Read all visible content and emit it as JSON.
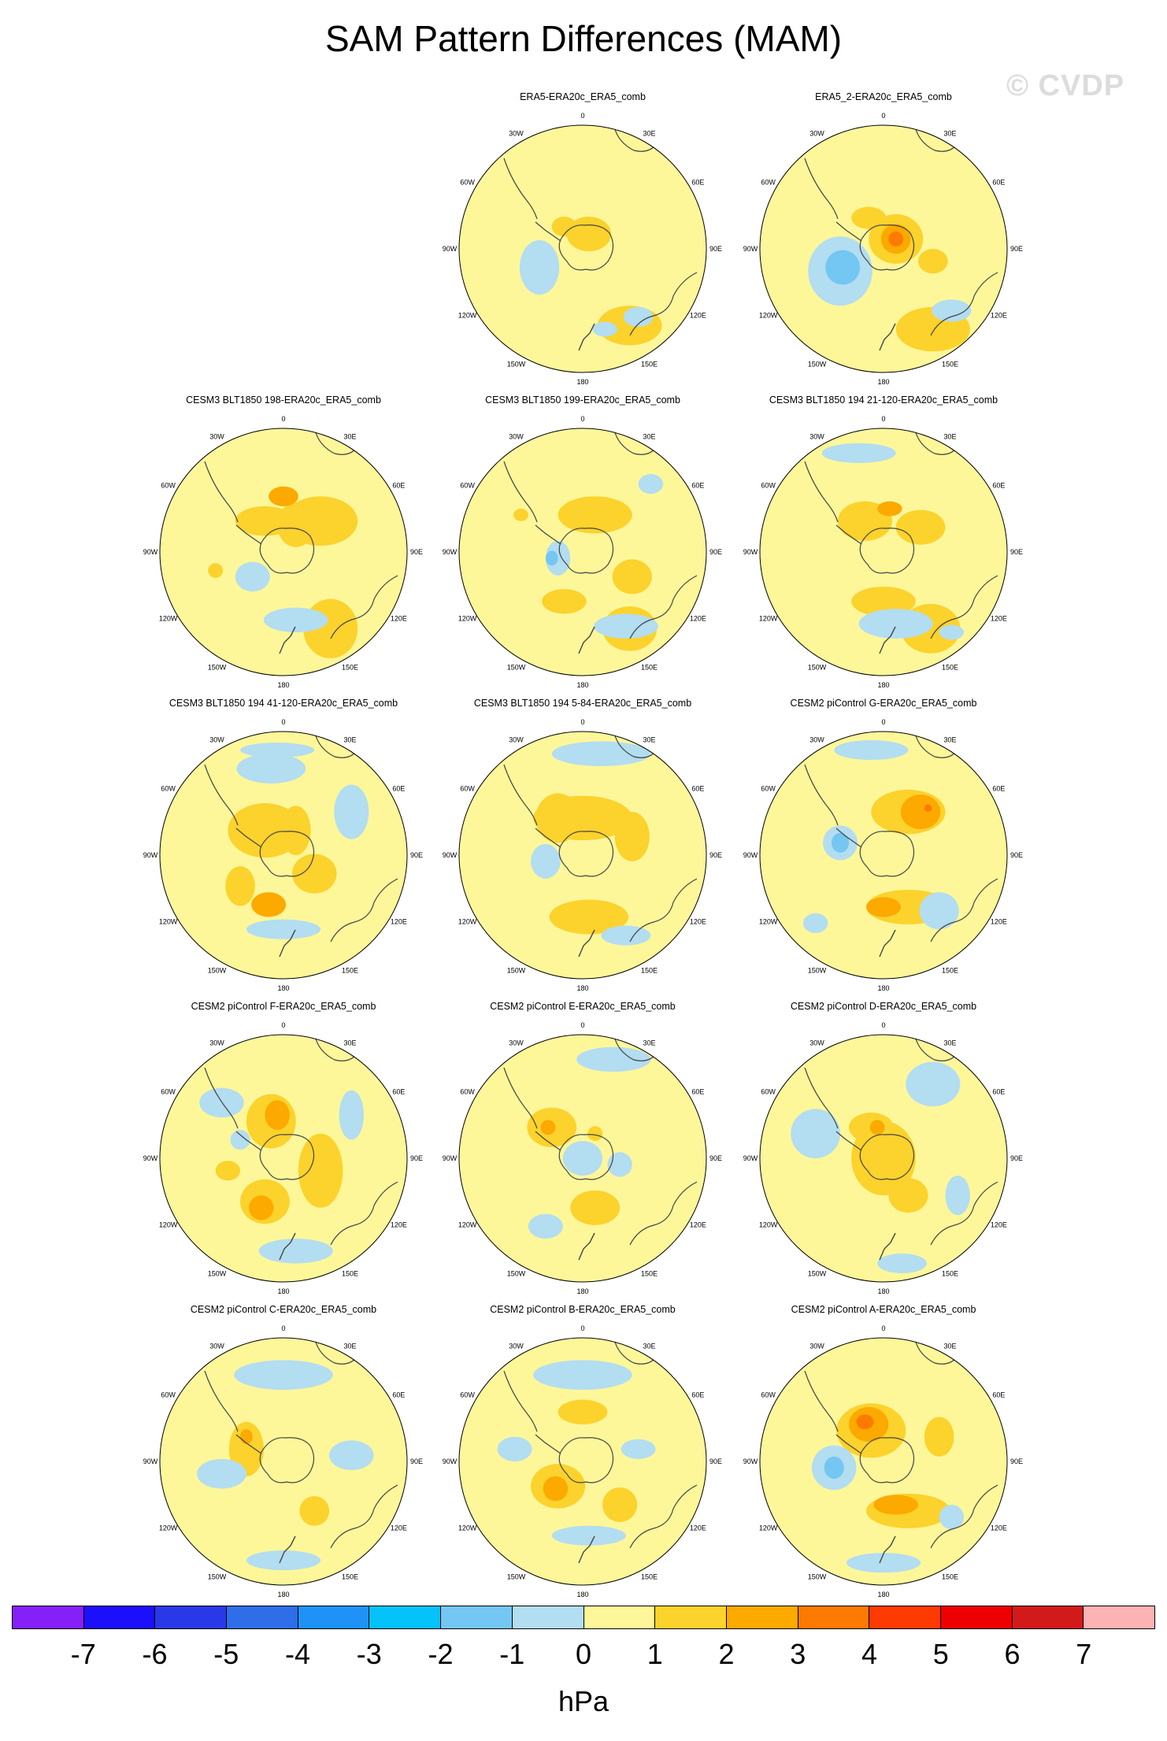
{
  "title": "SAM Pattern Differences (MAM)",
  "watermark": "© CVDP",
  "lon_labels": [
    "0",
    "30E",
    "60E",
    "90E",
    "120E",
    "150E",
    "180",
    "150W",
    "120W",
    "90W",
    "60W",
    "30W"
  ],
  "colors": {
    "background": "#ffffff",
    "zero_fill": "#fdf79a",
    "neg1": "#b3ddf0",
    "neg2": "#74c7f2",
    "pos1": "#fcd22c",
    "pos2": "#fca900",
    "pos3": "#fc7a00",
    "pos4": "#fd3a00"
  },
  "panels": [
    {
      "title": "ERA5-ERA20c_ERA5_comb",
      "row": 0,
      "col": 1,
      "blobs": [
        [
          0.38,
          0.62,
          0.26,
          0.16,
          1
        ],
        [
          -0.35,
          0.15,
          0.16,
          0.22,
          -1
        ],
        [
          0.05,
          -0.12,
          0.18,
          0.14,
          1
        ],
        [
          -0.15,
          -0.18,
          0.1,
          0.08,
          1
        ],
        [
          0.45,
          0.55,
          0.12,
          0.08,
          -1
        ],
        [
          0.18,
          0.65,
          0.1,
          0.06,
          -1
        ]
      ]
    },
    {
      "title": "ERA5_2-ERA20c_ERA5_comb",
      "row": 0,
      "col": 2,
      "blobs": [
        [
          0.4,
          0.65,
          0.3,
          0.18,
          1
        ],
        [
          -0.35,
          0.18,
          0.26,
          0.28,
          -1
        ],
        [
          -0.33,
          0.15,
          0.14,
          0.14,
          -2
        ],
        [
          0.1,
          -0.08,
          0.22,
          0.2,
          1
        ],
        [
          0.1,
          -0.08,
          0.12,
          0.12,
          2
        ],
        [
          0.1,
          -0.08,
          0.06,
          0.06,
          3
        ],
        [
          -0.12,
          -0.25,
          0.14,
          0.09,
          1
        ],
        [
          0.4,
          0.1,
          0.12,
          0.1,
          1
        ],
        [
          0.55,
          0.5,
          0.16,
          0.09,
          -1
        ]
      ]
    },
    {
      "title": "CESM3 BLT1850 198-ERA20c_ERA5_comb",
      "row": 1,
      "col": 0,
      "blobs": [
        [
          0.38,
          0.62,
          0.22,
          0.24,
          1
        ],
        [
          -0.15,
          -0.25,
          0.24,
          0.12,
          1
        ],
        [
          0.3,
          -0.25,
          0.3,
          0.2,
          1
        ],
        [
          0.1,
          -0.22,
          0.15,
          0.18,
          1
        ],
        [
          0.0,
          -0.45,
          0.12,
          0.08,
          2
        ],
        [
          -0.25,
          0.2,
          0.14,
          0.12,
          -1
        ],
        [
          0.1,
          0.55,
          0.26,
          0.1,
          -1
        ],
        [
          -0.55,
          0.15,
          0.06,
          0.06,
          1
        ]
      ]
    },
    {
      "title": "CESM3 BLT1850 199-ERA20c_ERA5_comb",
      "row": 1,
      "col": 1,
      "blobs": [
        [
          0.38,
          0.62,
          0.22,
          0.18,
          1
        ],
        [
          0.1,
          -0.3,
          0.3,
          0.15,
          1
        ],
        [
          0.4,
          0.2,
          0.16,
          0.14,
          1
        ],
        [
          -0.15,
          0.4,
          0.18,
          0.1,
          1
        ],
        [
          -0.2,
          0.05,
          0.1,
          0.14,
          -1
        ],
        [
          -0.25,
          0.05,
          0.05,
          0.06,
          -2
        ],
        [
          0.35,
          0.6,
          0.26,
          0.1,
          -1
        ],
        [
          0.55,
          -0.55,
          0.1,
          0.08,
          -1
        ],
        [
          -0.5,
          -0.3,
          0.06,
          0.05,
          1
        ]
      ]
    },
    {
      "title": "CESM3 BLT1850 194 21-120-ERA20c_ERA5_comb",
      "row": 1,
      "col": 2,
      "blobs": [
        [
          0.38,
          0.62,
          0.24,
          0.2,
          1
        ],
        [
          -0.15,
          -0.25,
          0.22,
          0.16,
          1
        ],
        [
          0.3,
          -0.2,
          0.2,
          0.14,
          1
        ],
        [
          0.0,
          0.4,
          0.26,
          0.12,
          1
        ],
        [
          0.05,
          -0.35,
          0.1,
          0.06,
          2
        ],
        [
          0.1,
          0.58,
          0.3,
          0.12,
          -1
        ],
        [
          -0.2,
          -0.8,
          0.3,
          0.08,
          -1
        ],
        [
          0.55,
          0.65,
          0.1,
          0.06,
          -1
        ]
      ]
    },
    {
      "title": "CESM3 BLT1850 194 41-120-ERA20c_ERA5_comb",
      "row": 2,
      "col": 0,
      "blobs": [
        [
          -0.15,
          -0.2,
          0.3,
          0.22,
          1
        ],
        [
          0.1,
          -0.2,
          0.12,
          0.2,
          1
        ],
        [
          0.25,
          0.15,
          0.18,
          0.16,
          1
        ],
        [
          -0.35,
          0.25,
          0.12,
          0.16,
          1
        ],
        [
          -0.12,
          0.4,
          0.14,
          0.1,
          2
        ],
        [
          0.55,
          -0.35,
          0.14,
          0.22,
          -1
        ],
        [
          -0.1,
          -0.7,
          0.28,
          0.12,
          -1
        ],
        [
          0.0,
          0.6,
          0.3,
          0.08,
          -1
        ],
        [
          -0.05,
          -0.85,
          0.3,
          0.06,
          -1
        ]
      ]
    },
    {
      "title": "CESM3 BLT1850 194 5-84-ERA20c_ERA5_comb",
      "row": 2,
      "col": 1,
      "blobs": [
        [
          0.0,
          -0.3,
          0.4,
          0.18,
          1
        ],
        [
          -0.2,
          -0.3,
          0.18,
          0.2,
          1
        ],
        [
          0.05,
          0.5,
          0.32,
          0.14,
          1
        ],
        [
          0.4,
          -0.15,
          0.14,
          0.2,
          1
        ],
        [
          -0.3,
          0.05,
          0.12,
          0.14,
          -1
        ],
        [
          0.15,
          -0.82,
          0.4,
          0.1,
          -1
        ],
        [
          0.35,
          0.65,
          0.2,
          0.08,
          -1
        ]
      ]
    },
    {
      "title": "CESM2 piControl G-ERA20c_ERA5_comb",
      "row": 2,
      "col": 2,
      "blobs": [
        [
          0.2,
          -0.35,
          0.3,
          0.18,
          1
        ],
        [
          0.3,
          -0.35,
          0.16,
          0.14,
          2
        ],
        [
          0.36,
          -0.38,
          0.03,
          0.03,
          3
        ],
        [
          0.2,
          0.42,
          0.34,
          0.14,
          1
        ],
        [
          0.0,
          0.42,
          0.14,
          0.08,
          2
        ],
        [
          -0.35,
          -0.1,
          0.14,
          0.14,
          -1
        ],
        [
          -0.35,
          -0.1,
          0.07,
          0.08,
          -2
        ],
        [
          0.45,
          0.45,
          0.16,
          0.15,
          -1
        ],
        [
          -0.1,
          -0.85,
          0.3,
          0.08,
          -1
        ],
        [
          -0.55,
          0.55,
          0.1,
          0.08,
          -1
        ]
      ]
    },
    {
      "title": "CESM2 piControl F-ERA20c_ERA5_comb",
      "row": 3,
      "col": 0,
      "blobs": [
        [
          -0.1,
          -0.3,
          0.2,
          0.22,
          1
        ],
        [
          -0.05,
          -0.35,
          0.1,
          0.12,
          2
        ],
        [
          -0.15,
          0.35,
          0.2,
          0.18,
          1
        ],
        [
          -0.18,
          0.4,
          0.1,
          0.1,
          2
        ],
        [
          0.3,
          0.1,
          0.18,
          0.3,
          1
        ],
        [
          -0.45,
          0.1,
          0.1,
          0.08,
          1
        ],
        [
          -0.5,
          -0.45,
          0.18,
          0.12,
          -1
        ],
        [
          0.55,
          -0.35,
          0.1,
          0.2,
          -1
        ],
        [
          0.1,
          0.75,
          0.3,
          0.1,
          -1
        ],
        [
          -0.35,
          -0.15,
          0.08,
          0.08,
          -1
        ]
      ]
    },
    {
      "title": "CESM2 piControl E-ERA20c_ERA5_comb",
      "row": 3,
      "col": 1,
      "blobs": [
        [
          -0.25,
          -0.25,
          0.2,
          0.16,
          1
        ],
        [
          -0.28,
          -0.25,
          0.06,
          0.06,
          2
        ],
        [
          0.1,
          0.4,
          0.2,
          0.14,
          1
        ],
        [
          0.0,
          0.0,
          0.16,
          0.14,
          -1
        ],
        [
          0.3,
          0.05,
          0.1,
          0.1,
          -1
        ],
        [
          -0.3,
          0.55,
          0.14,
          0.1,
          -1
        ],
        [
          0.25,
          -0.8,
          0.3,
          0.1,
          -1
        ],
        [
          0.1,
          -0.2,
          0.06,
          0.06,
          1
        ]
      ]
    },
    {
      "title": "CESM2 piControl D-ERA20c_ERA5_comb",
      "row": 3,
      "col": 2,
      "blobs": [
        [
          0.0,
          0.0,
          0.26,
          0.3,
          1
        ],
        [
          -0.1,
          -0.25,
          0.18,
          0.12,
          1
        ],
        [
          -0.05,
          -0.25,
          0.06,
          0.06,
          2
        ],
        [
          0.2,
          0.3,
          0.16,
          0.14,
          1
        ],
        [
          -0.55,
          -0.2,
          0.2,
          0.2,
          -1
        ],
        [
          0.4,
          -0.6,
          0.22,
          0.18,
          -1
        ],
        [
          0.6,
          0.3,
          0.1,
          0.16,
          -1
        ],
        [
          0.15,
          0.85,
          0.2,
          0.08,
          -1
        ]
      ]
    },
    {
      "title": "CESM2 piControl C-ERA20c_ERA5_comb",
      "row": 4,
      "col": 0,
      "blobs": [
        [
          -0.3,
          -0.1,
          0.14,
          0.22,
          1
        ],
        [
          -0.3,
          -0.2,
          0.05,
          0.06,
          2
        ],
        [
          0.25,
          0.4,
          0.12,
          0.12,
          1
        ],
        [
          0.0,
          -0.7,
          0.4,
          0.12,
          -1
        ],
        [
          -0.5,
          0.1,
          0.2,
          0.12,
          -1
        ],
        [
          0.55,
          -0.05,
          0.18,
          0.12,
          -1
        ],
        [
          0.0,
          0.8,
          0.3,
          0.08,
          -1
        ]
      ]
    },
    {
      "title": "CESM2 piControl B-ERA20c_ERA5_comb",
      "row": 4,
      "col": 1,
      "blobs": [
        [
          -0.2,
          0.2,
          0.22,
          0.18,
          1
        ],
        [
          -0.22,
          0.22,
          0.1,
          0.1,
          2
        ],
        [
          0.3,
          0.35,
          0.14,
          0.14,
          1
        ],
        [
          0.0,
          -0.4,
          0.2,
          0.1,
          1
        ],
        [
          0.0,
          -0.7,
          0.4,
          0.12,
          -1
        ],
        [
          -0.55,
          -0.1,
          0.14,
          0.1,
          -1
        ],
        [
          0.45,
          -0.1,
          0.14,
          0.08,
          -1
        ],
        [
          0.05,
          0.6,
          0.3,
          0.08,
          -1
        ]
      ]
    },
    {
      "title": "CESM2 piControl A-ERA20c_ERA5_comb",
      "row": 4,
      "col": 2,
      "blobs": [
        [
          -0.1,
          -0.25,
          0.28,
          0.22,
          1
        ],
        [
          -0.12,
          -0.3,
          0.16,
          0.14,
          2
        ],
        [
          -0.15,
          -0.32,
          0.07,
          0.06,
          3
        ],
        [
          0.2,
          0.4,
          0.34,
          0.14,
          1
        ],
        [
          0.1,
          0.35,
          0.18,
          0.08,
          2
        ],
        [
          0.45,
          -0.2,
          0.12,
          0.16,
          1
        ],
        [
          -0.4,
          0.05,
          0.18,
          0.18,
          -1
        ],
        [
          -0.4,
          0.05,
          0.08,
          0.09,
          -2
        ],
        [
          0.0,
          0.82,
          0.3,
          0.08,
          -1
        ],
        [
          0.55,
          0.45,
          0.1,
          0.1,
          -1
        ]
      ]
    }
  ],
  "colorbar": {
    "colors": [
      "#8620f8",
      "#1c0ffb",
      "#2a39e8",
      "#2e6ee8",
      "#1f92f7",
      "#05c2f9",
      "#74c7f2",
      "#b3ddf0",
      "#fdf79a",
      "#fcd22c",
      "#fca900",
      "#fc7a00",
      "#fd3a00",
      "#ef0000",
      "#d21a1a",
      "#fdb3b3"
    ],
    "labels": [
      "-7",
      "-6",
      "-5",
      "-4",
      "-3",
      "-2",
      "-1",
      "0",
      "1",
      "2",
      "3",
      "4",
      "5",
      "6",
      "7"
    ],
    "unit": "hPa"
  }
}
